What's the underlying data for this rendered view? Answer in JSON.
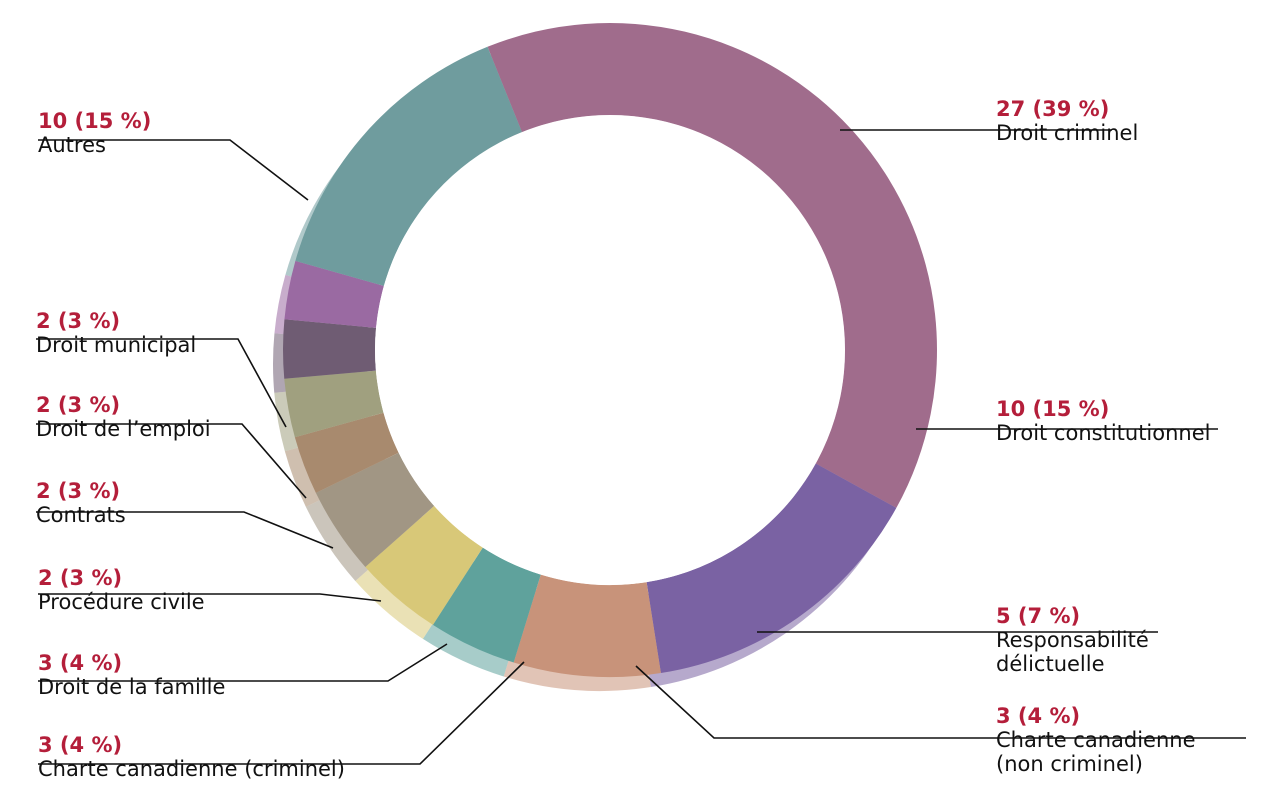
{
  "chart_data": {
    "type": "pie",
    "style": "donut",
    "legend": "none",
    "slices": [
      {
        "label": "Droit criminel",
        "value": 27,
        "value_label": "27 (39 %)",
        "color": "#a06c8c"
      },
      {
        "label": "Droit constitutionnel",
        "value": 10,
        "value_label": "10 (15 %)",
        "color": "#7a62a3"
      },
      {
        "label": "Responsabilité délictuelle",
        "label_lines": [
          "Responsabilité",
          "délictuelle"
        ],
        "value": 5,
        "value_label": "5 (7 %)",
        "color": "#c8937a"
      },
      {
        "label": "Charte canadienne (non criminel)",
        "label_lines": [
          "Charte canadienne",
          "(non criminel)"
        ],
        "value": 3,
        "value_label": "3 (4 %)",
        "color": "#5fa29c"
      },
      {
        "label": "Charte canadienne (criminel)",
        "value": 3,
        "value_label": "3 (4 %)",
        "color": "#d8c878"
      },
      {
        "label": "Droit de la famille",
        "value": 3,
        "value_label": "3 (4 %)",
        "color": "#a19684"
      },
      {
        "label": "Procédure civile",
        "value": 2,
        "value_label": "2 (3 %)",
        "color": "#a88a6e"
      },
      {
        "label": "Contrats",
        "value": 2,
        "value_label": "2 (3 %)",
        "color": "#a0a07f"
      },
      {
        "label": "Droit de l’emploi",
        "value": 2,
        "value_label": "2 (3 %)",
        "color": "#6f5c73"
      },
      {
        "label": "Droit municipal",
        "value": 2,
        "value_label": "2 (3 %)",
        "color": "#9a6aa2"
      },
      {
        "label": "Autres",
        "value": 10,
        "value_label": "10 (15 %)",
        "color": "#6f9c9e"
      }
    ]
  }
}
